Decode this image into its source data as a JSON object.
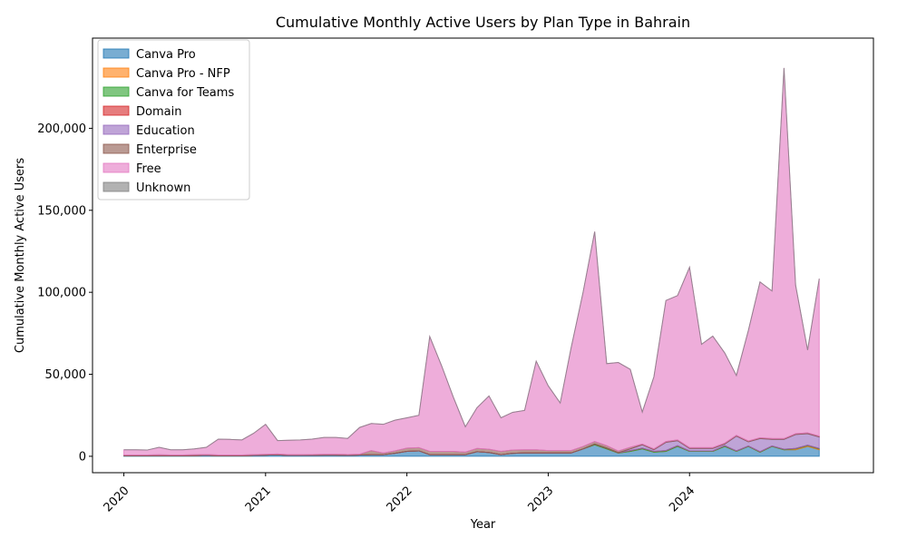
{
  "chart_data": {
    "type": "area",
    "stacked": true,
    "title": "Cumulative Monthly Active Users by Plan Type in Bahrain",
    "xlabel": "Year",
    "ylabel": "Cumulative Monthly Active Users",
    "xlim": [
      "2019-10-12",
      "2025-04-20"
    ],
    "ylim": [
      -10000,
      255000
    ],
    "x_ticks": [
      {
        "date": "2020-01-01",
        "label": "2020"
      },
      {
        "date": "2021-01-01",
        "label": "2021"
      },
      {
        "date": "2022-01-01",
        "label": "2022"
      },
      {
        "date": "2023-01-01",
        "label": "2023"
      },
      {
        "date": "2024-01-01",
        "label": "2024"
      }
    ],
    "y_ticks": [
      {
        "value": 0,
        "label": "0"
      },
      {
        "value": 50000,
        "label": "50,000"
      },
      {
        "value": 100000,
        "label": "100,000"
      },
      {
        "value": 150000,
        "label": "150,000"
      },
      {
        "value": 200000,
        "label": "200,000"
      }
    ],
    "grid": false,
    "legend_position": "top-left",
    "x": [
      "2020-01",
      "2020-02",
      "2020-03",
      "2020-04",
      "2020-05",
      "2020-06",
      "2020-07",
      "2020-08",
      "2020-09",
      "2020-10",
      "2020-11",
      "2020-12",
      "2021-01",
      "2021-02",
      "2021-03",
      "2021-04",
      "2021-05",
      "2021-06",
      "2021-07",
      "2021-08",
      "2021-09",
      "2021-10",
      "2021-11",
      "2021-12",
      "2022-01",
      "2022-02",
      "2022-03",
      "2022-04",
      "2022-05",
      "2022-06",
      "2022-07",
      "2022-08",
      "2022-09",
      "2022-10",
      "2022-11",
      "2022-12",
      "2023-01",
      "2023-02",
      "2023-03",
      "2023-04",
      "2023-05",
      "2023-06",
      "2023-07",
      "2023-08",
      "2023-09",
      "2023-10",
      "2023-11",
      "2023-12",
      "2024-01",
      "2024-02",
      "2024-03",
      "2024-04",
      "2024-05",
      "2024-06",
      "2024-07",
      "2024-08",
      "2024-09",
      "2024-10",
      "2024-11",
      "2024-12"
    ],
    "series": [
      {
        "name": "Canva Pro",
        "color": "#1f77b4",
        "values": [
          300,
          300,
          300,
          400,
          300,
          300,
          400,
          600,
          300,
          300,
          300,
          500,
          700,
          900,
          500,
          500,
          600,
          700,
          700,
          600,
          800,
          1000,
          1000,
          1800,
          3000,
          3300,
          1000,
          1000,
          1000,
          1000,
          2800,
          2300,
          1000,
          1800,
          2000,
          2000,
          2000,
          2000,
          2000,
          4500,
          7000,
          4500,
          2000,
          3000,
          4500,
          2500,
          3000,
          6000,
          3000,
          3000,
          3000,
          6000,
          3000,
          6000,
          2500,
          6000,
          4000,
          4000,
          6000,
          4000
        ]
      },
      {
        "name": "Canva Pro - NFP",
        "color": "#ff7f0e",
        "values": [
          0,
          0,
          0,
          0,
          0,
          0,
          0,
          0,
          0,
          0,
          0,
          0,
          0,
          0,
          0,
          0,
          0,
          0,
          0,
          0,
          0,
          0,
          0,
          0,
          0,
          0,
          0,
          0,
          0,
          0,
          0,
          0,
          0,
          0,
          0,
          0,
          0,
          0,
          0,
          0,
          0,
          0,
          0,
          0,
          0,
          0,
          0,
          0,
          0,
          0,
          0,
          0,
          0,
          0,
          0,
          0,
          0,
          500,
          500,
          500
        ]
      },
      {
        "name": "Canva for Teams",
        "color": "#2ca02c",
        "values": [
          0,
          0,
          0,
          0,
          0,
          0,
          0,
          0,
          0,
          0,
          0,
          0,
          0,
          0,
          0,
          0,
          0,
          0,
          0,
          0,
          0,
          0,
          0,
          0,
          0,
          0,
          0,
          0,
          0,
          0,
          0,
          0,
          0,
          0,
          0,
          0,
          0,
          0,
          0,
          0,
          500,
          500,
          200,
          500,
          500,
          500,
          500,
          500,
          300,
          300,
          300,
          500,
          300,
          300,
          300,
          300,
          300,
          300,
          300,
          300
        ]
      },
      {
        "name": "Domain",
        "color": "#d62728",
        "values": [
          0,
          0,
          0,
          0,
          0,
          0,
          0,
          0,
          0,
          0,
          0,
          0,
          0,
          0,
          0,
          0,
          0,
          0,
          0,
          0,
          0,
          0,
          0,
          0,
          0,
          0,
          0,
          0,
          0,
          0,
          0,
          0,
          0,
          0,
          0,
          0,
          0,
          0,
          0,
          0,
          0,
          0,
          0,
          0,
          0,
          0,
          0,
          0,
          0,
          0,
          0,
          0,
          0,
          0,
          0,
          0,
          0,
          0,
          0,
          0
        ]
      },
      {
        "name": "Education",
        "color": "#9467bd",
        "values": [
          0,
          0,
          0,
          0,
          0,
          0,
          0,
          0,
          0,
          0,
          0,
          0,
          0,
          0,
          0,
          0,
          0,
          0,
          0,
          0,
          0,
          0,
          0,
          0,
          0,
          0,
          0,
          0,
          0,
          0,
          0,
          0,
          0,
          0,
          0,
          0,
          0,
          0,
          0,
          0,
          0,
          0,
          0,
          1000,
          2000,
          1000,
          5000,
          3000,
          1500,
          1500,
          1500,
          1000,
          9000,
          2500,
          8000,
          4000,
          6000,
          8500,
          7000,
          7000
        ]
      },
      {
        "name": "Enterprise",
        "color": "#8c564b",
        "values": [
          500,
          500,
          500,
          500,
          500,
          500,
          500,
          500,
          500,
          500,
          500,
          500,
          500,
          500,
          500,
          500,
          500,
          500,
          500,
          500,
          500,
          2500,
          1000,
          1500,
          2000,
          2000,
          2000,
          2000,
          2000,
          1500,
          2000,
          2000,
          2000,
          2000,
          2000,
          2000,
          1500,
          1500,
          1500,
          1500,
          1500,
          1500,
          1000,
          1000,
          500,
          500,
          500,
          500,
          500,
          500,
          500,
          500,
          500,
          500,
          500,
          500,
          500,
          500,
          500,
          500
        ]
      },
      {
        "name": "Free",
        "color": "#e377c2",
        "values": [
          3200,
          3200,
          3000,
          4600,
          3200,
          3200,
          3600,
          4400,
          9700,
          9500,
          9200,
          13000,
          18300,
          8200,
          8800,
          9000,
          9400,
          10300,
          10300,
          9800,
          16300,
          16500,
          17500,
          18700,
          18500,
          19700,
          70000,
          52000,
          33000,
          15500,
          24800,
          32500,
          20500,
          23000,
          24000,
          54000,
          39500,
          29000,
          62500,
          94000,
          128000,
          50000,
          54000,
          47500,
          19500,
          44000,
          86000,
          88000,
          110000,
          63000,
          68000,
          55000,
          36500,
          67500,
          95000,
          90000,
          226000,
          90500,
          50500,
          96000
        ]
      },
      {
        "name": "Unknown",
        "color": "#7f7f7f",
        "values": [
          0,
          0,
          0,
          0,
          0,
          0,
          0,
          0,
          0,
          0,
          0,
          0,
          0,
          0,
          0,
          0,
          0,
          0,
          0,
          0,
          0,
          0,
          0,
          0,
          0,
          0,
          0,
          0,
          0,
          0,
          0,
          0,
          0,
          0,
          0,
          0,
          0,
          0,
          0,
          0,
          0,
          0,
          0,
          0,
          0,
          0,
          0,
          0,
          0,
          0,
          0,
          0,
          0,
          0,
          0,
          0,
          0,
          0,
          0,
          0
        ]
      }
    ]
  }
}
